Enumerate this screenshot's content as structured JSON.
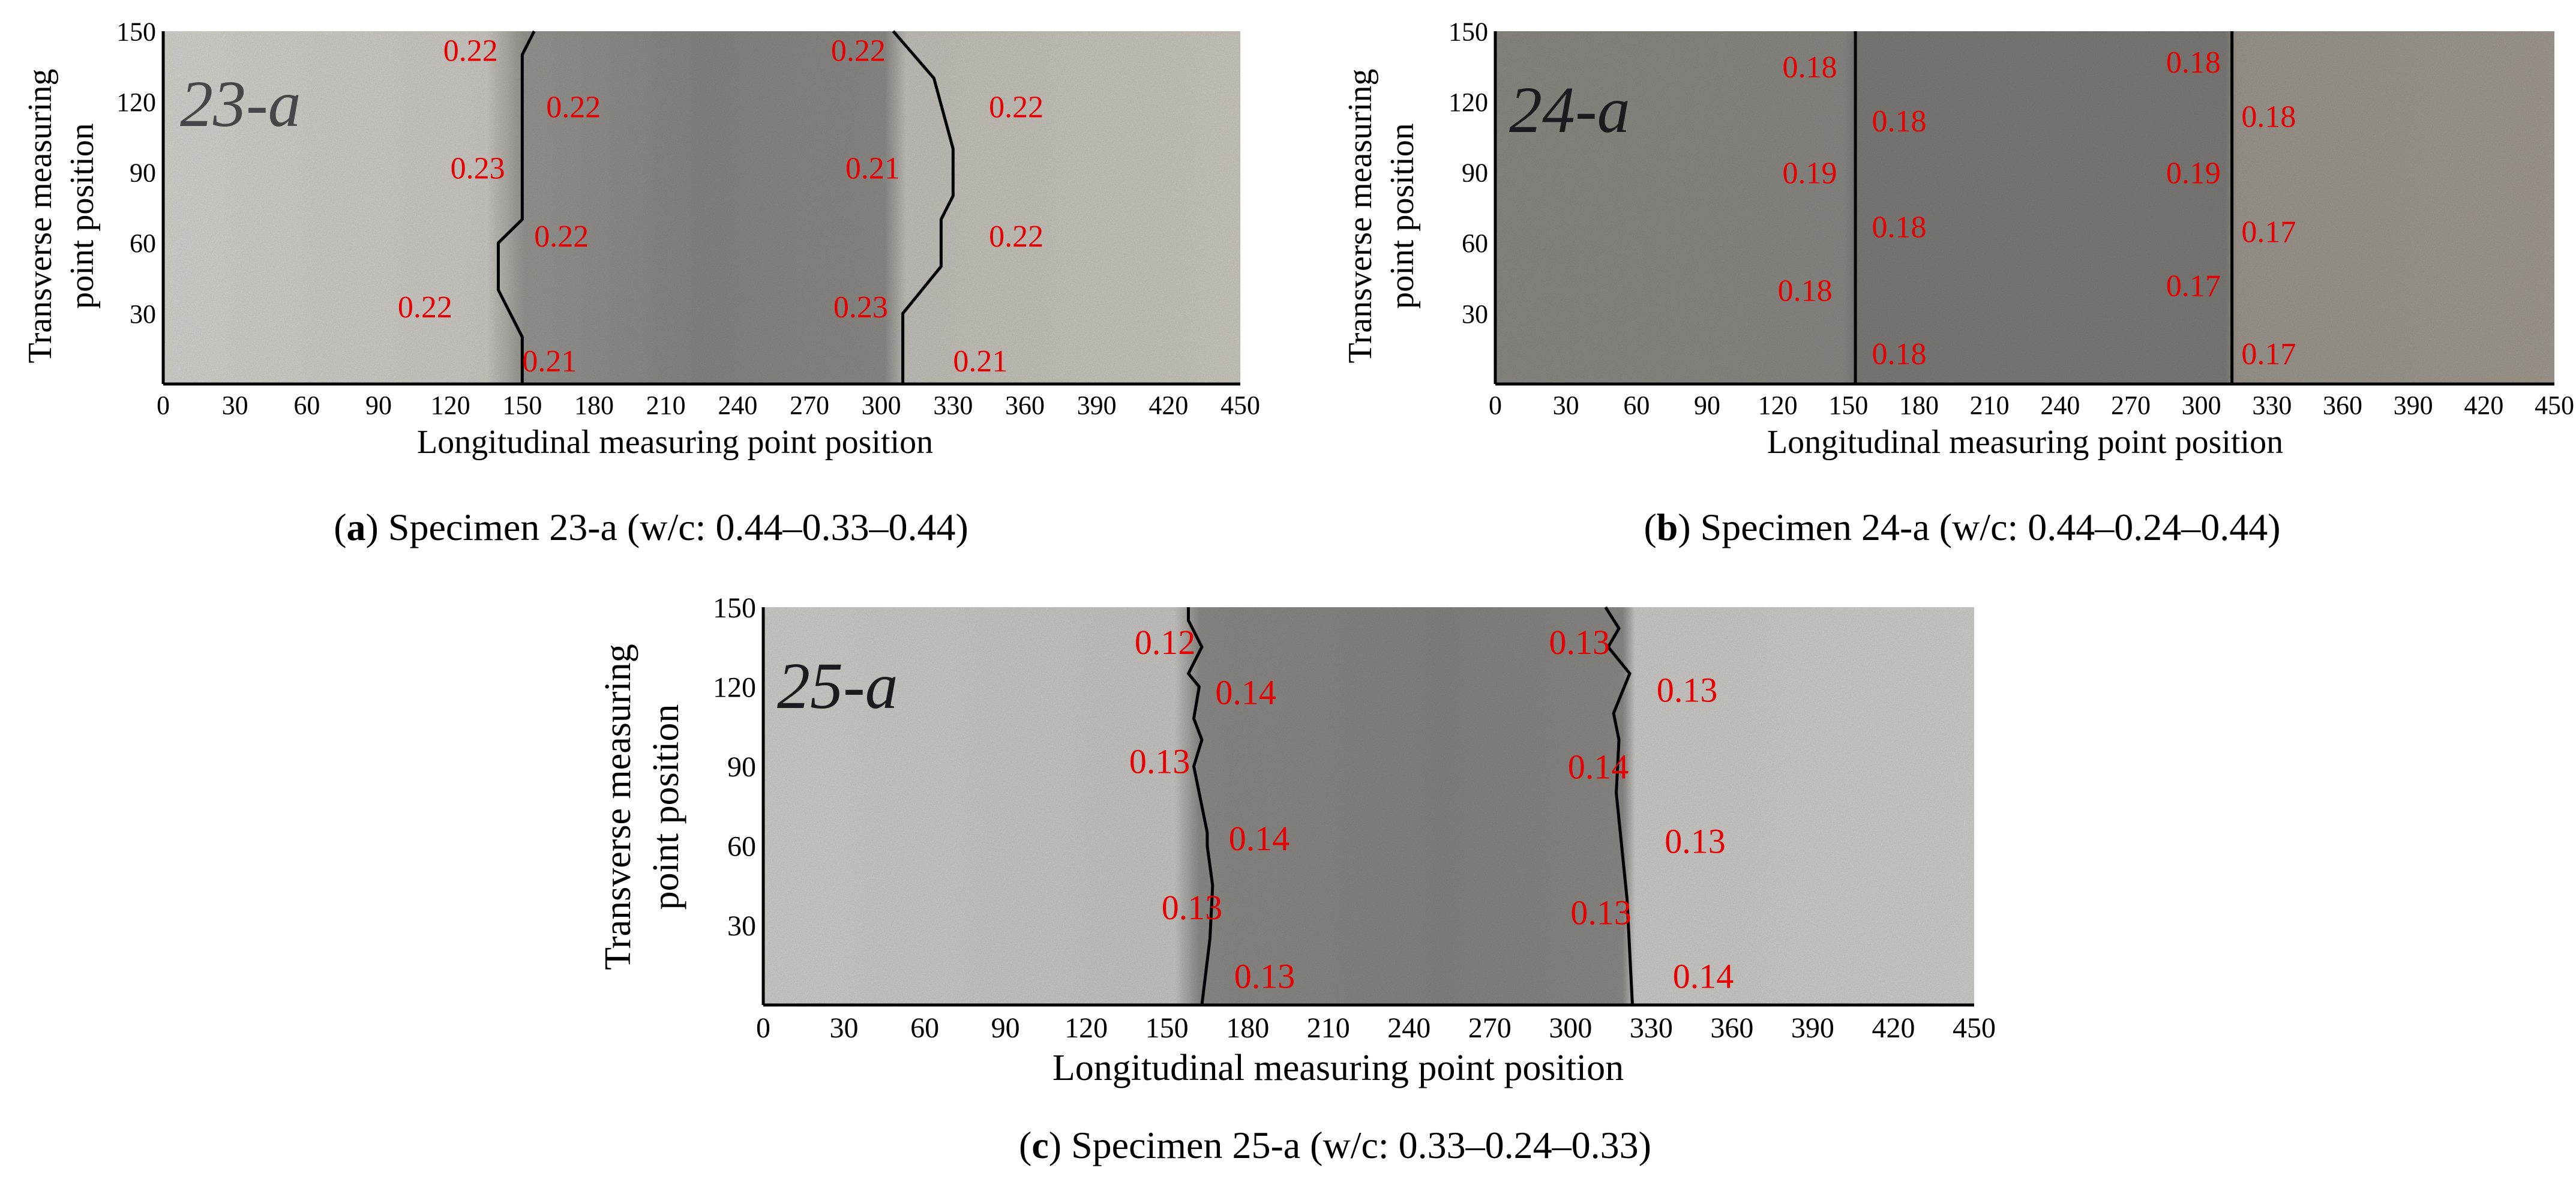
{
  "chart_data": [
    {
      "type": "scatter",
      "panel": "a",
      "specimen": "23-a",
      "caption_letter": "a",
      "caption_text": " Specimen 23-a (w/c: 0.44–0.33–0.44)",
      "xlabel": "Longitudinal measuring point position",
      "ylabel_line1": "Transverse measuring",
      "ylabel_line2": "point position",
      "xticks": [
        "0",
        "30",
        "60",
        "90",
        "120",
        "150",
        "180",
        "210",
        "240",
        "270",
        "300",
        "330",
        "360",
        "390",
        "420",
        "450"
      ],
      "yticks": [
        "150",
        "120",
        "90",
        "60",
        "30"
      ],
      "xlim": [
        0,
        450
      ],
      "ylim": [
        0,
        150
      ],
      "background": "concrete photograph (light grey – dark grey – light grey zones)",
      "interface_lines": [
        [
          [
            150,
            0
          ],
          [
            150,
            20
          ],
          [
            140,
            40
          ],
          [
            140,
            60
          ],
          [
            150,
            70
          ],
          [
            150,
            100
          ],
          [
            150,
            120
          ],
          [
            150,
            140
          ],
          [
            155,
            150
          ]
        ],
        [
          [
            309,
            0
          ],
          [
            309,
            30
          ],
          [
            325,
            50
          ],
          [
            325,
            70
          ],
          [
            330,
            80
          ],
          [
            330,
            100
          ],
          [
            322,
            130
          ],
          [
            305,
            150
          ]
        ]
      ],
      "points": [
        {
          "x": 117,
          "y": 142,
          "label": "0.22"
        },
        {
          "x": 160,
          "y": 118,
          "label": "0.22"
        },
        {
          "x": 120,
          "y": 92,
          "label": "0.23"
        },
        {
          "x": 155,
          "y": 63,
          "label": "0.22"
        },
        {
          "x": 98,
          "y": 33,
          "label": "0.22"
        },
        {
          "x": 150,
          "y": 10,
          "label": "0.21"
        },
        {
          "x": 279,
          "y": 142,
          "label": "0.22"
        },
        {
          "x": 345,
          "y": 118,
          "label": "0.22"
        },
        {
          "x": 285,
          "y": 92,
          "label": "0.21"
        },
        {
          "x": 345,
          "y": 63,
          "label": "0.22"
        },
        {
          "x": 280,
          "y": 33,
          "label": "0.23"
        },
        {
          "x": 330,
          "y": 10,
          "label": "0.21"
        }
      ]
    },
    {
      "type": "scatter",
      "panel": "b",
      "specimen": "24-a",
      "caption_letter": "b",
      "caption_text": " Specimen 24-a (w/c: 0.44–0.24–0.44)",
      "xlabel": "Longitudinal measuring point position",
      "ylabel_line1": "Transverse measuring",
      "ylabel_line2": "point position",
      "xticks": [
        "0",
        "30",
        "60",
        "90",
        "120",
        "150",
        "180",
        "210",
        "240",
        "270",
        "300",
        "330",
        "360",
        "390",
        "420",
        "450"
      ],
      "yticks": [
        "150",
        "120",
        "90",
        "60",
        "30"
      ],
      "xlim": [
        0,
        450
      ],
      "ylim": [
        0,
        150
      ],
      "background": "concrete photograph (grey zones)",
      "interface_lines": [
        [
          [
            153,
            0
          ],
          [
            153,
            150
          ]
        ],
        [
          [
            313,
            0
          ],
          [
            313,
            150
          ]
        ]
      ],
      "points": [
        {
          "x": 122,
          "y": 135,
          "label": "0.18"
        },
        {
          "x": 160,
          "y": 112,
          "label": "0.18"
        },
        {
          "x": 122,
          "y": 90,
          "label": "0.19"
        },
        {
          "x": 160,
          "y": 67,
          "label": "0.18"
        },
        {
          "x": 120,
          "y": 40,
          "label": "0.18"
        },
        {
          "x": 160,
          "y": 13,
          "label": "0.18"
        },
        {
          "x": 285,
          "y": 137,
          "label": "0.18"
        },
        {
          "x": 285,
          "y": 90,
          "label": "0.19"
        },
        {
          "x": 285,
          "y": 42,
          "label": "0.17"
        },
        {
          "x": 317,
          "y": 114,
          "label": "0.18"
        },
        {
          "x": 317,
          "y": 65,
          "label": "0.17"
        },
        {
          "x": 317,
          "y": 13,
          "label": "0.17"
        }
      ]
    },
    {
      "type": "scatter",
      "panel": "c",
      "specimen": "25-a",
      "caption_letter": "c",
      "caption_text": " Specimen 25-a (w/c: 0.33–0.24–0.33)",
      "xlabel": "Longitudinal measuring point position",
      "ylabel_line1": "Transverse measuring",
      "ylabel_line2": "point position",
      "xticks": [
        "0",
        "30",
        "60",
        "90",
        "120",
        "150",
        "180",
        "210",
        "240",
        "270",
        "300",
        "330",
        "360",
        "390",
        "420",
        "450"
      ],
      "yticks": [
        "150",
        "120",
        "90",
        "60",
        "30"
      ],
      "xlim": [
        0,
        450
      ],
      "ylim": [
        0,
        150
      ],
      "background": "concrete photograph (light grey – dark grey – light grey zones)",
      "interface_lines": [
        [
          [
            163,
            0
          ],
          [
            166,
            25
          ],
          [
            167,
            45
          ],
          [
            165,
            60
          ],
          [
            165,
            65
          ],
          [
            160,
            90
          ],
          [
            163,
            100
          ],
          [
            160,
            108
          ],
          [
            162,
            120
          ],
          [
            158,
            125
          ],
          [
            163,
            135
          ],
          [
            158,
            145
          ],
          [
            158,
            150
          ]
        ],
        [
          [
            323,
            0
          ],
          [
            321,
            40
          ],
          [
            317,
            80
          ],
          [
            318,
            100
          ],
          [
            316,
            110
          ],
          [
            322,
            125
          ],
          [
            314,
            135
          ],
          [
            318,
            142
          ],
          [
            313,
            150
          ]
        ]
      ],
      "points": [
        {
          "x": 138,
          "y": 137,
          "label": "0.12"
        },
        {
          "x": 168,
          "y": 118,
          "label": "0.14"
        },
        {
          "x": 136,
          "y": 92,
          "label": "0.13"
        },
        {
          "x": 173,
          "y": 63,
          "label": "0.14"
        },
        {
          "x": 148,
          "y": 37,
          "label": "0.13"
        },
        {
          "x": 175,
          "y": 11,
          "label": "0.13"
        },
        {
          "x": 292,
          "y": 137,
          "label": "0.13"
        },
        {
          "x": 332,
          "y": 119,
          "label": "0.13"
        },
        {
          "x": 299,
          "y": 90,
          "label": "0.14"
        },
        {
          "x": 335,
          "y": 62,
          "label": "0.13"
        },
        {
          "x": 300,
          "y": 35,
          "label": "0.13"
        },
        {
          "x": 338,
          "y": 11,
          "label": "0.14"
        }
      ]
    }
  ],
  "colors": {
    "value_label": "#e60000",
    "interface_line": "#000000",
    "axis": "#000000",
    "concrete_light": "#d0ceca",
    "concrete_dark": "#8e8c89"
  }
}
